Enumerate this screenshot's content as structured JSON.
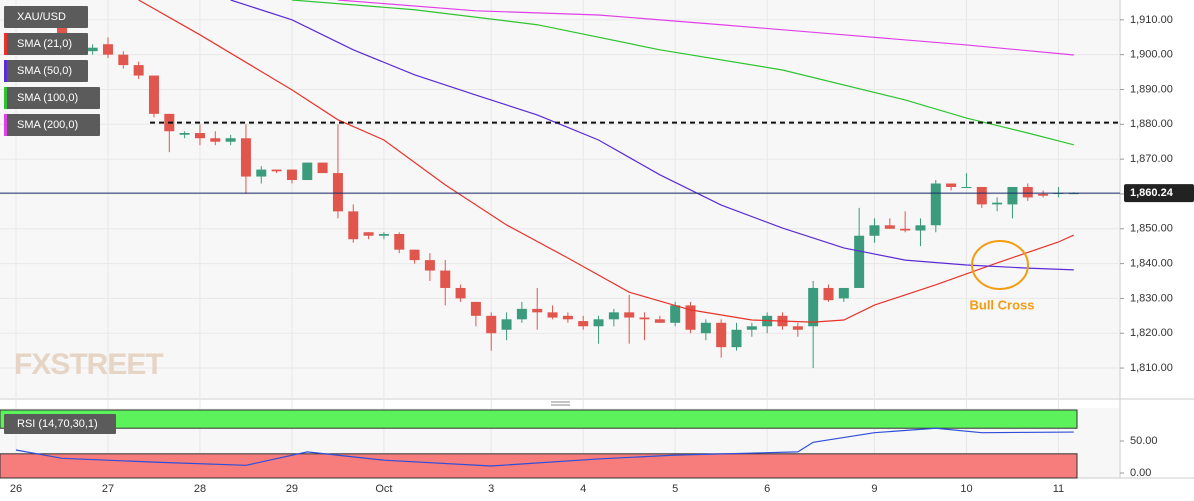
{
  "chart_data": [
    {
      "type": "candlestick",
      "symbol": "XAU/USD",
      "watermark": "FXSTREET",
      "annotation": "Bull Cross",
      "up_color": "#3b9b7c",
      "down_color": "#e0564d",
      "open": [
        null,
        null,
        null,
        1912,
        1905,
        1901,
        1903,
        1900,
        1897,
        1894,
        1883,
        1877,
        1877.5,
        1876,
        1875,
        1876,
        1865,
        1867,
        1867,
        1864,
        1869,
        1866,
        1855,
        1849,
        1848,
        1848.5,
        1844,
        1841,
        1838,
        1833,
        1829,
        1825,
        1821,
        1824,
        1827,
        1826,
        1825,
        1823.5,
        1822,
        1824,
        1826,
        1824.5,
        1824,
        1823,
        1828,
        1820,
        1823,
        1816,
        1821,
        1822,
        1825,
        1822,
        1822,
        1833,
        1830,
        1833,
        1848,
        1851,
        1850,
        1849.5,
        1851,
        1863,
        1862,
        1862,
        1857,
        1857,
        1862,
        1860,
        1860,
        1860.2
      ],
      "high": [
        null,
        null,
        null,
        1914,
        1906,
        1903,
        1905,
        1901,
        1898,
        1894,
        1883,
        1878,
        1880,
        1878,
        1877,
        1880,
        1868,
        1867,
        1867,
        1869,
        1869,
        1880,
        1857,
        1849,
        1849,
        1849,
        1844,
        1843,
        1841,
        1834,
        1829,
        1826,
        1826,
        1829,
        1833,
        1828,
        1826,
        1825,
        1825,
        1827,
        1831,
        1826,
        1825,
        1829,
        1829,
        1824,
        1824,
        1823,
        1823,
        1826,
        1826,
        1823,
        1835,
        1834,
        1833,
        1856,
        1853,
        1853,
        1855,
        1853,
        1864,
        1863,
        1866,
        1862,
        1859,
        1862,
        1863,
        1861,
        1862,
        1860.5
      ],
      "low": [
        null,
        null,
        null,
        1904,
        1900,
        1900,
        1899,
        1896,
        1893,
        1882,
        1872,
        1876,
        1874,
        1874,
        1874,
        1860,
        1863,
        1866,
        1863,
        1864,
        1866,
        1853,
        1846,
        1847,
        1847,
        1843,
        1840,
        1835,
        1828,
        1829,
        1822,
        1815,
        1818,
        1823,
        1821,
        1824,
        1823,
        1821,
        1817,
        1822,
        1817,
        1818,
        1823,
        1822,
        1820,
        1818,
        1813,
        1815,
        1819,
        1820,
        1821,
        1819,
        1810,
        1829,
        1829,
        1833,
        1846,
        1850,
        1849,
        1845,
        1849,
        1861,
        1862,
        1856,
        1855,
        1853,
        1858,
        1859,
        1859,
        1860
      ],
      "close": [
        null,
        null,
        null,
        1905,
        1901,
        1902,
        1900,
        1897,
        1894,
        1883,
        1878,
        1877.5,
        1876,
        1875,
        1876,
        1865,
        1867,
        1866.5,
        1864,
        1869,
        1866,
        1855,
        1847,
        1848,
        1848.5,
        1844,
        1841,
        1838,
        1833,
        1830,
        1825,
        1820,
        1824,
        1827,
        1826,
        1824.5,
        1824,
        1822,
        1824,
        1826,
        1824.5,
        1824,
        1823,
        1828,
        1821,
        1823,
        1816,
        1821,
        1822,
        1825,
        1822,
        1821,
        1833,
        1829.5,
        1833,
        1848,
        1851,
        1850,
        1849.5,
        1851,
        1863,
        1862,
        1862,
        1857,
        1857.5,
        1862,
        1859,
        1859.5,
        1860.3,
        1860.24
      ],
      "series": [
        {
          "name": "SMA (21,0)",
          "color": "#e8332b",
          "x": [
            8,
            12,
            18,
            21,
            24,
            28,
            32,
            36,
            40,
            44,
            48,
            52,
            54,
            56,
            60,
            64,
            68,
            69
          ],
          "values": [
            1915.7,
            1905.7,
            1889.9,
            1881.3,
            1875.5,
            1862.6,
            1851.1,
            1841.6,
            1831.8,
            1826.7,
            1823.8,
            1823.2,
            1823.8,
            1828.1,
            1833.9,
            1840.2,
            1846.2,
            1848.2
          ]
        },
        {
          "name": "SMA (50,0)",
          "color": "#5b2bd6",
          "x": [
            14,
            18,
            22,
            26,
            30,
            34,
            38,
            42,
            46,
            50,
            54,
            58,
            62,
            66,
            69
          ],
          "values": [
            1915.7,
            1910,
            1901.4,
            1894.2,
            1888.4,
            1882.7,
            1875.5,
            1865.5,
            1856.8,
            1850.2,
            1844.5,
            1841,
            1839.6,
            1838.7,
            1838.2
          ]
        },
        {
          "name": "SMA (100,0)",
          "color": "#2fc42f",
          "x": [
            18,
            26,
            34,
            42,
            50,
            58,
            62,
            66,
            69
          ],
          "values": [
            1915.7,
            1912.9,
            1908.6,
            1901.4,
            1895.6,
            1887,
            1881.8,
            1877.5,
            1874.1
          ]
        },
        {
          "name": "SMA (200,0)",
          "color": "#e040e8",
          "x": [
            21,
            30,
            38,
            46,
            54,
            62,
            69
          ],
          "values": [
            1915.7,
            1912.6,
            1911.4,
            1908.6,
            1905.7,
            1902.8,
            1899.9
          ]
        }
      ],
      "resistance": 1880.5,
      "last_price": {
        "value": 1860.24,
        "label": "1,860.24"
      },
      "ylim": [
        1801.4,
        1915.7
      ],
      "yticks": [
        {
          "value": 1810,
          "label": "1,810.00"
        },
        {
          "value": 1820,
          "label": "1,820.00"
        },
        {
          "value": 1830,
          "label": "1,830.00"
        },
        {
          "value": 1840,
          "label": "1,840.00"
        },
        {
          "value": 1850,
          "label": "1,850.00"
        },
        {
          "value": 1860,
          "label": "1,860.00"
        },
        {
          "value": 1870,
          "label": "1,870.00"
        },
        {
          "value": 1880,
          "label": "1,880.00"
        },
        {
          "value": 1890,
          "label": "1,890.00"
        },
        {
          "value": 1900,
          "label": "1,900.00"
        },
        {
          "value": 1910,
          "label": "1,910.00"
        }
      ],
      "xticks": [
        {
          "value": 0,
          "label": "26"
        },
        {
          "value": 6,
          "label": "27"
        },
        {
          "value": 12,
          "label": "28"
        },
        {
          "value": 18,
          "label": "29"
        },
        {
          "value": 24,
          "label": "Oct"
        },
        {
          "value": 31,
          "label": "3"
        },
        {
          "value": 37,
          "label": "4"
        },
        {
          "value": 43,
          "label": "5"
        },
        {
          "value": 49,
          "label": "6"
        },
        {
          "value": 56,
          "label": "9"
        },
        {
          "value": 62,
          "label": "10"
        },
        {
          "value": 68,
          "label": "11"
        }
      ],
      "grid": true
    },
    {
      "type": "line",
      "series": [
        {
          "name": "RSI (14,70,30,1)",
          "color": "#2f4fd8",
          "x": [
            0,
            3,
            9,
            15,
            19,
            24,
            31,
            38,
            43,
            51,
            52,
            56,
            60,
            63,
            69
          ],
          "values": [
            36,
            23,
            17,
            12,
            33,
            20,
            11,
            22,
            28,
            33,
            48,
            63,
            70,
            63,
            64
          ]
        }
      ],
      "overbought": 70,
      "oversold": 30,
      "overbought_color": "#5cf25c",
      "oversold_color": "#f77c7c",
      "ylim": [
        -7.8,
        101.6
      ],
      "yticks": [
        {
          "value": 0,
          "label": "0.00"
        },
        {
          "value": 50,
          "label": "50.00"
        }
      ]
    }
  ]
}
